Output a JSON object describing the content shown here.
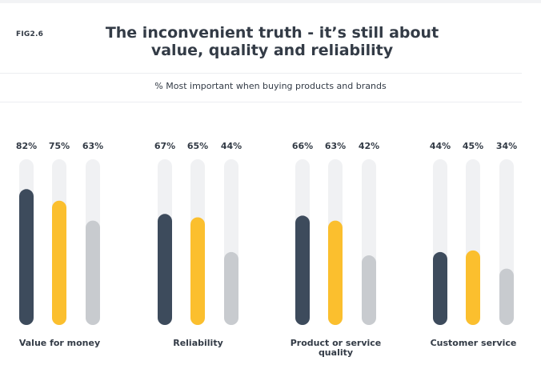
{
  "header": {
    "fig_label": "FIG2.6",
    "title_line1": "The inconvenient truth - it’s still about",
    "title_line2": "value, quality and reliability"
  },
  "chart_data": {
    "type": "bar",
    "title": "The inconvenient truth - it’s still about value, quality and reliability",
    "subtitle": "% Most important when buying products and brands",
    "categories": [
      [
        "Value for money"
      ],
      [
        "Reliability"
      ],
      [
        "Product or service",
        "quality"
      ],
      [
        "Customer service"
      ]
    ],
    "series": [
      {
        "color": "#3d4b5c",
        "values": [
          82,
          67,
          66,
          44
        ]
      },
      {
        "color": "#fbbf2e",
        "values": [
          75,
          65,
          63,
          45
        ]
      },
      {
        "color": "#c8cbcf",
        "values": [
          63,
          44,
          42,
          34
        ]
      }
    ],
    "value_suffix": "%",
    "track_color": "#f0f1f3",
    "ylim": [
      0,
      100
    ],
    "grid": false
  }
}
